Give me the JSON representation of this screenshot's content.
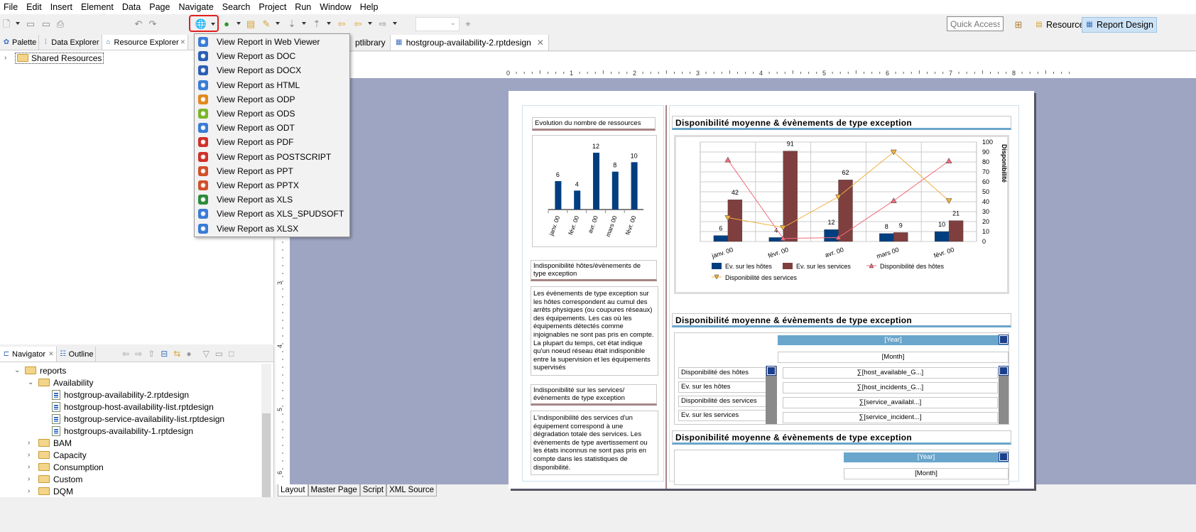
{
  "menu": [
    "File",
    "Edit",
    "Insert",
    "Element",
    "Data",
    "Page",
    "Navigate",
    "Search",
    "Project",
    "Run",
    "Window",
    "Help"
  ],
  "toolbar": {
    "quick_access_placeholder": "Quick Access",
    "perspectives": [
      {
        "label": "Resource"
      },
      {
        "label": "Report Design"
      }
    ],
    "highlight_color": "#e02020"
  },
  "left_tabs": [
    {
      "label": "Palette",
      "icon": "palette-icon"
    },
    {
      "label": "Data Explorer",
      "icon": "data-explorer-icon"
    },
    {
      "label": "Resource Explorer",
      "icon": "resource-explorer-icon",
      "active": true
    }
  ],
  "resource_tree": [
    {
      "label": "Shared Resources"
    }
  ],
  "nav_tabs": [
    {
      "label": "Navigator",
      "active": true
    },
    {
      "label": "Outline"
    }
  ],
  "navigator_tree": [
    {
      "label": "reports",
      "level": 0,
      "expanded": true,
      "type": "folder"
    },
    {
      "label": "Availability",
      "level": 1,
      "expanded": true,
      "type": "folder"
    },
    {
      "label": "hostgroup-availability-2.rptdesign",
      "level": 2,
      "type": "file"
    },
    {
      "label": "hostgroup-host-availability-list.rptdesign",
      "level": 2,
      "type": "file"
    },
    {
      "label": "hostgroup-service-availability-list.rptdesign",
      "level": 2,
      "type": "file"
    },
    {
      "label": "hostgroups-availability-1.rptdesign",
      "level": 2,
      "type": "file"
    },
    {
      "label": "BAM",
      "level": 1,
      "type": "folder"
    },
    {
      "label": "Capacity",
      "level": 1,
      "type": "folder"
    },
    {
      "label": "Consumption",
      "level": 1,
      "type": "folder"
    },
    {
      "label": "Custom",
      "level": 1,
      "type": "folder"
    },
    {
      "label": "DQM",
      "level": 1,
      "type": "folder"
    }
  ],
  "editor_tabs": [
    {
      "label": "ptlibrary"
    },
    {
      "label": "hostgroup-availability-2.rptdesign",
      "active": true
    }
  ],
  "dropdown": [
    {
      "label": "View Report in Web Viewer",
      "color": "#3a7bd5"
    },
    {
      "label": "View Report as DOC",
      "color": "#2b5fb4"
    },
    {
      "label": "View Report as DOCX",
      "color": "#2b5fb4"
    },
    {
      "label": "View Report as HTML",
      "color": "#3a7bd5"
    },
    {
      "label": "View Report as ODP",
      "color": "#e08a1e"
    },
    {
      "label": "View Report as ODS",
      "color": "#7bb62a"
    },
    {
      "label": "View Report as ODT",
      "color": "#3a7bd5"
    },
    {
      "label": "View Report as PDF",
      "color": "#d0302a"
    },
    {
      "label": "View Report as POSTSCRIPT",
      "color": "#d0302a"
    },
    {
      "label": "View Report as PPT",
      "color": "#d0502a"
    },
    {
      "label": "View Report as PPTX",
      "color": "#d0502a"
    },
    {
      "label": "View Report as XLS",
      "color": "#2e8b3a"
    },
    {
      "label": "View Report as XLS_SPUDSOFT",
      "color": "#3a7bd5"
    },
    {
      "label": "View Report as XLSX",
      "color": "#3a7bd5"
    }
  ],
  "ruler": {
    "h_labels": [
      "0",
      "1",
      "2",
      "3",
      "4",
      "5",
      "6",
      "7",
      "8"
    ],
    "v_labels": [
      "3",
      "4",
      "5",
      "6"
    ]
  },
  "report": {
    "left_header1": "Evolution du nombre de ressources",
    "left_header2": "Indisponibilité  hôtes/évènements de type exception",
    "left_para1": "Les évènements de type exception sur les hôtes correspondent au cumul des arrêts physiques (ou coupures réseaux) des équipements. Les cas où les équipements détectés comme injoignables ne sont pas pris en compte. La plupart du temps, cet état indique qu'un noeud réseau était indisponible entre la supervision et les équipements supervisés",
    "left_header3": "Indisponibilité sur les services/ évènements de type exception",
    "left_para2": "L'indisponibilité des services d'un équipement correspond à une dégradation totale des services. Les évènements de type avertissement ou les états inconnus ne sont pas pris en compte dans les statistiques de disponibilité.",
    "section_title": "Disponibilité moyenne & évènements de type exception",
    "crosstab": {
      "year": "[Year]",
      "month": "[Month]",
      "rows": [
        "Disponibilité des hôtes",
        "Ev. sur les hôtes",
        "Disponibilité des services",
        "Ev. sur les services"
      ],
      "measures": [
        "∑[host_available_G...]",
        "∑[host_incidents_G...]",
        "∑[service_availabl...]",
        "∑[service_incident...]"
      ]
    }
  },
  "chart_data": [
    {
      "type": "bar",
      "categories": [
        "janv. 00",
        "févr. 00",
        "avr. 00",
        "mars 00",
        "févr. 00"
      ],
      "values": [
        6,
        4,
        12,
        8,
        10
      ],
      "color": "#003f7f"
    },
    {
      "type": "bar+line",
      "categories": [
        "janv. 00",
        "févr. 00",
        "avr. 00",
        "mars 00",
        "févr. 00"
      ],
      "ylabel": "Disponibilité",
      "ylim": [
        0,
        100
      ],
      "yticks": [
        0,
        10,
        20,
        30,
        40,
        50,
        60,
        70,
        80,
        90,
        100
      ],
      "grid": true,
      "legend": "bottom",
      "series": [
        {
          "name": "Ev. sur les hôtes",
          "type": "bar",
          "values": [
            6,
            4,
            12,
            8,
            10
          ],
          "color": "#003f7f"
        },
        {
          "name": "Ev. sur les services",
          "type": "bar",
          "values": [
            42,
            91,
            62,
            9,
            21
          ],
          "color": "#7f3f3f"
        },
        {
          "name": "Disponibilité des hôtes",
          "type": "line",
          "values": [
            82,
            3,
            4,
            41,
            81
          ],
          "color": "#f06a7a",
          "marker": "triangle-up"
        },
        {
          "name": "Disponibilité des services",
          "type": "line",
          "values": [
            24,
            14,
            45,
            90,
            41
          ],
          "color": "#f0b040",
          "marker": "triangle-down"
        }
      ]
    }
  ],
  "bottom_tabs": [
    {
      "label": "Layout",
      "active": true
    },
    {
      "label": "Master Page"
    },
    {
      "label": "Script"
    },
    {
      "label": "XML Source"
    }
  ]
}
